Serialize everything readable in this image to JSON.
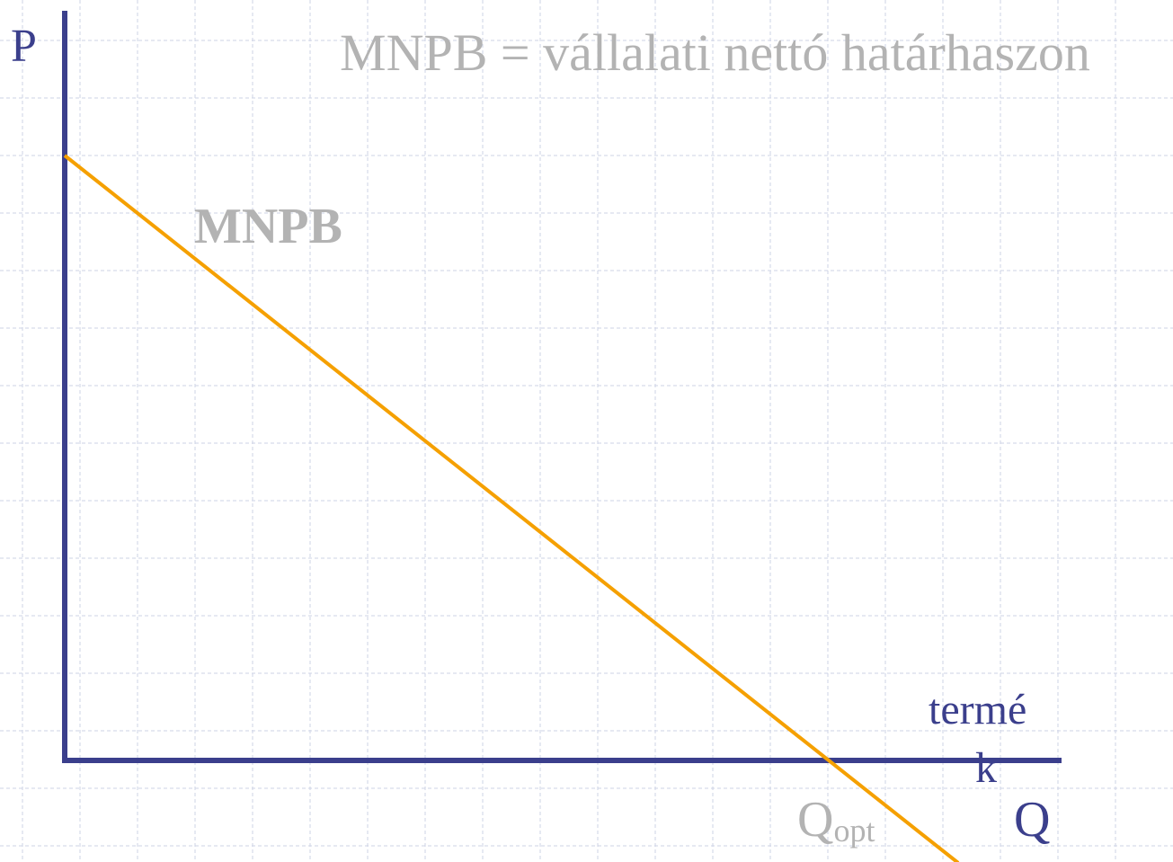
{
  "title": "MNPB = vállalati nettó határhaszon",
  "axes": {
    "y_label": "P",
    "x_label": "Q",
    "x_caption_lines": [
      "termé",
      "k"
    ]
  },
  "curve": {
    "label": "MNPB"
  },
  "marker": {
    "label": "Q",
    "subscript": "opt"
  }
}
